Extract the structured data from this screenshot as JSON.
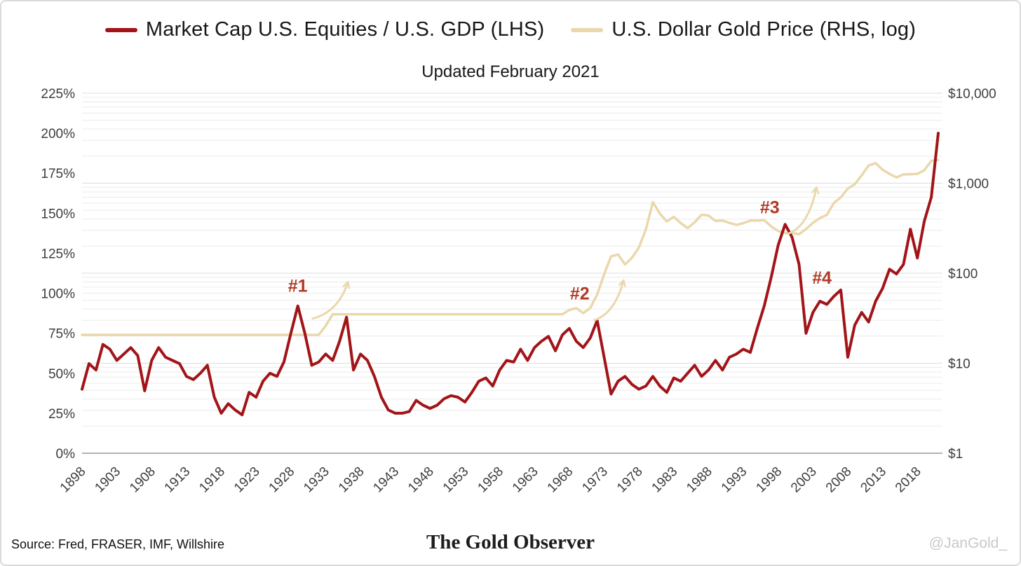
{
  "legend": {
    "series1": "Market Cap U.S. Equities / U.S. GDP (LHS)",
    "series2": "U.S. Dollar Gold Price (RHS, log)"
  },
  "subtitle": "Updated February 2021",
  "footer": {
    "source": "Source: Fred, FRASER, IMF, Willshire",
    "brand": "The Gold Observer",
    "handle": "@JanGold_"
  },
  "colors": {
    "equities_line": "#A21418",
    "gold_line": "#EAD8AC",
    "annotation_text": "#B03A26",
    "grid_minor": "#ebebeb",
    "grid_major": "#dddddd",
    "axis_line": "#9c9c9c"
  },
  "chart_data": {
    "type": "line",
    "title": "Updated February 2021",
    "x_range": [
      1898,
      2021
    ],
    "x_ticks": [
      1898,
      1903,
      1908,
      1913,
      1918,
      1923,
      1928,
      1933,
      1938,
      1943,
      1948,
      1953,
      1958,
      1963,
      1968,
      1973,
      1978,
      1983,
      1988,
      1993,
      1998,
      2003,
      2008,
      2013,
      2018
    ],
    "axes": {
      "left": {
        "min": 0,
        "max": 225,
        "values": [
          0,
          25,
          50,
          75,
          100,
          125,
          150,
          175,
          200,
          225
        ],
        "labels": [
          "0%",
          "25%",
          "50%",
          "75%",
          "100%",
          "125%",
          "150%",
          "175%",
          "200%",
          "225%"
        ]
      },
      "right": {
        "scale": "log",
        "min": 1,
        "max": 10000,
        "values": [
          1,
          10,
          100,
          1000,
          10000
        ],
        "labels": [
          "$1",
          "$10",
          "$100",
          "$1,000",
          "$10,000"
        ]
      }
    },
    "arrow_color": "#EAD8AC",
    "annotation_color": "#B03A26",
    "annotations": [
      {
        "label": "#1",
        "year": 1929.0,
        "pct": 101,
        "arrow": [
          [
            1931.0,
            84
          ],
          [
            1934.8,
            88
          ],
          [
            1936.2,
            107
          ]
        ]
      },
      {
        "label": "#2",
        "year": 1969.5,
        "pct": 96,
        "arrow": [
          [
            1971.5,
            83
          ],
          [
            1974.5,
            87
          ],
          [
            1975.8,
            108
          ]
        ]
      },
      {
        "label": "#3",
        "year": 1996.8,
        "pct": 150,
        "arrow": [
          [
            1999.3,
            137
          ],
          [
            2002.3,
            141
          ],
          [
            2003.5,
            166
          ]
        ]
      },
      {
        "label": "#4",
        "year": 2004.3,
        "pct": 106
      }
    ],
    "series": [
      {
        "name": "Market Cap U.S. Equities / U.S. GDP (LHS)",
        "data_name": "equities-gdp-line",
        "axis": "left",
        "unit": "%",
        "color": "#A21418",
        "z": 2,
        "start_year": 1898,
        "values": [
          40,
          56,
          52,
          68,
          65,
          58,
          62,
          66,
          61,
          39,
          58,
          66,
          60,
          58,
          56,
          48,
          46,
          50,
          55,
          35,
          25,
          31,
          27,
          24,
          38,
          35,
          45,
          50,
          48,
          57,
          75,
          92,
          75,
          55,
          57,
          62,
          58,
          70,
          85,
          52,
          62,
          58,
          48,
          35,
          27,
          25,
          25,
          26,
          33,
          30,
          28,
          30,
          34,
          36,
          35,
          32,
          38,
          45,
          47,
          42,
          52,
          58,
          57,
          65,
          58,
          66,
          70,
          73,
          64,
          74,
          78,
          70,
          66,
          72,
          83,
          60,
          37,
          45,
          48,
          43,
          40,
          42,
          48,
          42,
          38,
          47,
          45,
          50,
          55,
          48,
          52,
          58,
          52,
          60,
          62,
          65,
          63,
          78,
          92,
          110,
          130,
          143,
          135,
          118,
          75,
          88,
          95,
          93,
          98,
          102,
          60,
          80,
          88,
          82,
          95,
          103,
          115,
          112,
          118,
          140,
          122,
          145,
          160,
          200
        ]
      },
      {
        "name": "U.S. Dollar Gold Price (RHS, log)",
        "data_name": "gold-price-line",
        "axis": "right",
        "unit": "USD",
        "color": "#EAD8AC",
        "z": 1,
        "start_year": 1898,
        "values": [
          20.67,
          20.67,
          20.67,
          20.67,
          20.67,
          20.67,
          20.67,
          20.67,
          20.67,
          20.67,
          20.67,
          20.67,
          20.67,
          20.67,
          20.67,
          20.67,
          20.67,
          20.67,
          20.67,
          20.67,
          20.67,
          20.67,
          20.67,
          20.67,
          20.67,
          20.67,
          20.67,
          20.67,
          20.67,
          20.67,
          20.67,
          20.67,
          20.67,
          20.67,
          20.67,
          26,
          35,
          35,
          35,
          35,
          35,
          35,
          35,
          35,
          35,
          35,
          35,
          35,
          35,
          35,
          35,
          35,
          35,
          35,
          35,
          35,
          35,
          35,
          35,
          35,
          35,
          35,
          35,
          35,
          35,
          35,
          35,
          35,
          35,
          35,
          39,
          41,
          36,
          41,
          58,
          97,
          154,
          161,
          125,
          148,
          193,
          307,
          615,
          460,
          376,
          424,
          361,
          317,
          368,
          446,
          437,
          381,
          384,
          362,
          344,
          360,
          384,
          384,
          388,
          331,
          294,
          279,
          279,
          271,
          310,
          363,
          410,
          445,
          603,
          695,
          872,
          972,
          1225,
          1572,
          1669,
          1411,
          1266,
          1160,
          1251,
          1257,
          1268,
          1393,
          1770,
          1810
        ]
      }
    ]
  }
}
